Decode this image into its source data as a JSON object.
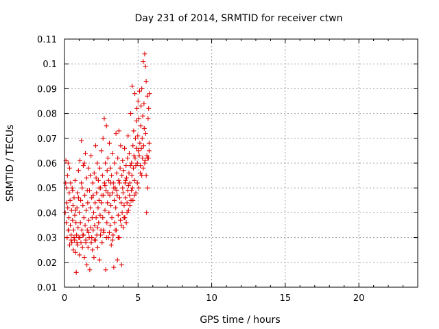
{
  "chart_data": {
    "type": "scatter",
    "title": "Day 231 of 2014, SRMTID for receiver ctwn",
    "xlabel": "GPS time / hours",
    "ylabel": "SRMTID / TECUs",
    "xlim": [
      0,
      24
    ],
    "ylim": [
      0.01,
      0.11
    ],
    "xticks": [
      0,
      5,
      10,
      15,
      20
    ],
    "yticks": [
      0.01,
      0.02,
      0.03,
      0.04,
      0.05,
      0.06,
      0.07,
      0.08,
      0.09,
      0.1,
      0.11
    ],
    "xtick_labels": [
      "0",
      "5",
      "10",
      "15",
      "20"
    ],
    "ytick_labels": [
      "0.01",
      "0.02",
      "0.03",
      "0.04",
      "0.05",
      "0.06",
      "0.07",
      "0.08",
      "0.09",
      "0.1",
      "0.11"
    ],
    "grid": true,
    "marker": "+",
    "color": "#e00000",
    "series": [
      {
        "name": "SRMTID",
        "points": [
          [
            0.05,
            0.04
          ],
          [
            0.08,
            0.052
          ],
          [
            0.1,
            0.061
          ],
          [
            0.12,
            0.036
          ],
          [
            0.15,
            0.044
          ],
          [
            0.18,
            0.03
          ],
          [
            0.2,
            0.055
          ],
          [
            0.22,
            0.042
          ],
          [
            0.25,
            0.06
          ],
          [
            0.28,
            0.033
          ],
          [
            0.3,
            0.038
          ],
          [
            0.32,
            0.048
          ],
          [
            0.35,
            0.027
          ],
          [
            0.38,
            0.045
          ],
          [
            0.4,
            0.035
          ],
          [
            0.42,
            0.052
          ],
          [
            0.45,
            0.031
          ],
          [
            0.48,
            0.041
          ],
          [
            0.5,
            0.028
          ],
          [
            0.52,
            0.05
          ],
          [
            0.55,
            0.037
          ],
          [
            0.58,
            0.043
          ],
          [
            0.6,
            0.025
          ],
          [
            0.62,
            0.033
          ],
          [
            0.65,
            0.046
          ],
          [
            0.68,
            0.029
          ],
          [
            0.7,
            0.039
          ],
          [
            0.72,
            0.053
          ],
          [
            0.75,
            0.024
          ],
          [
            0.78,
            0.036
          ],
          [
            0.8,
            0.016
          ],
          [
            0.82,
            0.031
          ],
          [
            0.85,
            0.042
          ],
          [
            0.88,
            0.027
          ],
          [
            0.9,
            0.048
          ],
          [
            0.92,
            0.034
          ],
          [
            0.95,
            0.057
          ],
          [
            0.98,
            0.03
          ],
          [
            1.0,
            0.04
          ],
          [
            1.02,
            0.023
          ],
          [
            1.05,
            0.061
          ],
          [
            1.08,
            0.036
          ],
          [
            1.1,
            0.045
          ],
          [
            1.12,
            0.028
          ],
          [
            1.15,
            0.069
          ],
          [
            1.18,
            0.033
          ],
          [
            1.2,
            0.05
          ],
          [
            1.22,
            0.026
          ],
          [
            1.25,
            0.043
          ],
          [
            1.28,
            0.059
          ],
          [
            1.3,
            0.031
          ],
          [
            1.32,
            0.038
          ],
          [
            1.35,
            0.022
          ],
          [
            1.38,
            0.047
          ],
          [
            1.4,
            0.035
          ],
          [
            1.42,
            0.064
          ],
          [
            1.45,
            0.029
          ],
          [
            1.48,
            0.041
          ],
          [
            1.5,
            0.054
          ],
          [
            1.52,
            0.019
          ],
          [
            1.55,
            0.033
          ],
          [
            1.58,
            0.044
          ],
          [
            1.6,
            0.026
          ],
          [
            1.62,
            0.058
          ],
          [
            1.65,
            0.037
          ],
          [
            1.68,
            0.03
          ],
          [
            1.7,
            0.049
          ],
          [
            1.72,
            0.017
          ],
          [
            1.75,
            0.042
          ],
          [
            1.78,
            0.034
          ],
          [
            1.8,
            0.063
          ],
          [
            1.82,
            0.028
          ],
          [
            1.85,
            0.046
          ],
          [
            1.88,
            0.038
          ],
          [
            1.9,
            0.025
          ],
          [
            1.92,
            0.052
          ],
          [
            1.95,
            0.033
          ],
          [
            1.98,
            0.04
          ],
          [
            2.0,
            0.022
          ],
          [
            2.02,
            0.056
          ],
          [
            2.05,
            0.035
          ],
          [
            2.08,
            0.044
          ],
          [
            2.1,
            0.029
          ],
          [
            2.12,
            0.067
          ],
          [
            2.15,
            0.038
          ],
          [
            2.18,
            0.048
          ],
          [
            2.2,
            0.031
          ],
          [
            2.22,
            0.06
          ],
          [
            2.25,
            0.026
          ],
          [
            2.28,
            0.042
          ],
          [
            2.3,
            0.053
          ],
          [
            2.32,
            0.036
          ],
          [
            2.35,
            0.045
          ],
          [
            2.38,
            0.021
          ],
          [
            2.4,
            0.058
          ],
          [
            2.42,
            0.039
          ],
          [
            2.45,
            0.05
          ],
          [
            2.48,
            0.033
          ],
          [
            2.5,
            0.065
          ],
          [
            2.52,
            0.044
          ],
          [
            2.55,
            0.028
          ],
          [
            2.58,
            0.055
          ],
          [
            2.6,
            0.038
          ],
          [
            2.62,
            0.07
          ],
          [
            2.65,
            0.047
          ],
          [
            2.68,
            0.032
          ],
          [
            2.7,
            0.078
          ],
          [
            2.72,
            0.052
          ],
          [
            2.75,
            0.041
          ],
          [
            2.78,
            0.06
          ],
          [
            2.8,
            0.017
          ],
          [
            2.82,
            0.049
          ],
          [
            2.85,
            0.075
          ],
          [
            2.88,
            0.036
          ],
          [
            2.9,
            0.057
          ],
          [
            2.92,
            0.044
          ],
          [
            2.95,
            0.062
          ],
          [
            2.98,
            0.03
          ],
          [
            3.0,
            0.053
          ],
          [
            3.02,
            0.04
          ],
          [
            3.05,
            0.068
          ],
          [
            3.08,
            0.047
          ],
          [
            3.1,
            0.035
          ],
          [
            3.12,
            0.058
          ],
          [
            3.15,
            0.043
          ],
          [
            3.18,
            0.027
          ],
          [
            3.2,
            0.055
          ],
          [
            3.22,
            0.038
          ],
          [
            3.25,
            0.064
          ],
          [
            3.28,
            0.048
          ],
          [
            3.3,
            0.031
          ],
          [
            3.32,
            0.052
          ],
          [
            3.35,
            0.018
          ],
          [
            3.38,
            0.045
          ],
          [
            3.4,
            0.06
          ],
          [
            3.42,
            0.036
          ],
          [
            3.45,
            0.05
          ],
          [
            3.48,
            0.042
          ],
          [
            3.5,
            0.072
          ],
          [
            3.52,
            0.033
          ],
          [
            3.55,
            0.056
          ],
          [
            3.58,
            0.047
          ],
          [
            3.6,
            0.021
          ],
          [
            3.62,
            0.062
          ],
          [
            3.65,
            0.039
          ],
          [
            3.68,
            0.053
          ],
          [
            3.7,
            0.073
          ],
          [
            3.72,
            0.03
          ],
          [
            3.75,
            0.046
          ],
          [
            3.78,
            0.058
          ],
          [
            3.8,
            0.037
          ],
          [
            3.82,
            0.067
          ],
          [
            3.85,
            0.044
          ],
          [
            3.88,
            0.019
          ],
          [
            3.9,
            0.055
          ],
          [
            3.92,
            0.04
          ],
          [
            3.95,
            0.061
          ],
          [
            3.98,
            0.048
          ],
          [
            4.0,
            0.034
          ],
          [
            4.02,
            0.057
          ],
          [
            4.05,
            0.043
          ],
          [
            4.08,
            0.066
          ],
          [
            4.1,
            0.038
          ],
          [
            4.12,
            0.052
          ],
          [
            4.15,
            0.046
          ],
          [
            4.18,
            0.059
          ],
          [
            4.2,
            0.036
          ],
          [
            4.22,
            0.054
          ],
          [
            4.25,
            0.044
          ],
          [
            4.28,
            0.062
          ],
          [
            4.3,
            0.049
          ],
          [
            4.32,
            0.071
          ],
          [
            4.35,
            0.041
          ],
          [
            4.38,
            0.056
          ],
          [
            4.4,
            0.064
          ],
          [
            4.42,
            0.047
          ],
          [
            4.45,
            0.052
          ],
          [
            4.48,
            0.059
          ],
          [
            4.5,
            0.08
          ],
          [
            4.52,
            0.045
          ],
          [
            4.55,
            0.06
          ],
          [
            4.58,
            0.055
          ],
          [
            4.6,
            0.091
          ],
          [
            4.62,
            0.05
          ],
          [
            4.65,
            0.067
          ],
          [
            4.68,
            0.058
          ],
          [
            4.7,
            0.073
          ],
          [
            4.72,
            0.063
          ],
          [
            4.75,
            0.053
          ],
          [
            4.78,
            0.088
          ],
          [
            4.8,
            0.062
          ],
          [
            4.82,
            0.07
          ],
          [
            4.85,
            0.059
          ],
          [
            4.88,
            0.077
          ],
          [
            4.9,
            0.066
          ],
          [
            4.92,
            0.082
          ],
          [
            4.95,
            0.06
          ],
          [
            4.98,
            0.071
          ],
          [
            5.0,
            0.085
          ],
          [
            5.02,
            0.065
          ],
          [
            5.05,
            0.078
          ],
          [
            5.08,
            0.063
          ],
          [
            5.1,
            0.089
          ],
          [
            5.12,
            0.068
          ],
          [
            5.15,
            0.059
          ],
          [
            5.18,
            0.075
          ],
          [
            5.2,
            0.083
          ],
          [
            5.22,
            0.066
          ],
          [
            5.25,
            0.09
          ],
          [
            5.28,
            0.07
          ],
          [
            5.3,
            0.062
          ],
          [
            5.32,
            0.079
          ],
          [
            5.35,
            0.101
          ],
          [
            5.38,
            0.067
          ],
          [
            5.4,
            0.084
          ],
          [
            5.42,
            0.074
          ],
          [
            5.45,
            0.104
          ],
          [
            5.48,
            0.061
          ],
          [
            5.5,
            0.099
          ],
          [
            5.52,
            0.072
          ],
          [
            5.55,
            0.093
          ],
          [
            5.58,
            0.04
          ],
          [
            5.6,
            0.063
          ],
          [
            5.62,
            0.087
          ],
          [
            5.65,
            0.05
          ],
          [
            5.68,
            0.078
          ],
          [
            5.7,
            0.062
          ],
          [
            5.72,
            0.082
          ],
          [
            5.75,
            0.068
          ],
          [
            5.78,
            0.088
          ],
          [
            0.15,
            0.05
          ],
          [
            0.35,
            0.058
          ],
          [
            0.55,
            0.049
          ],
          [
            0.75,
            0.041
          ],
          [
            0.95,
            0.046
          ],
          [
            1.15,
            0.052
          ],
          [
            1.35,
            0.06
          ],
          [
            1.55,
            0.049
          ],
          [
            1.75,
            0.055
          ],
          [
            1.95,
            0.047
          ],
          [
            2.15,
            0.054
          ],
          [
            2.35,
            0.05
          ],
          [
            2.55,
            0.047
          ],
          [
            2.75,
            0.051
          ],
          [
            2.95,
            0.048
          ],
          [
            3.15,
            0.052
          ],
          [
            3.35,
            0.05
          ],
          [
            3.55,
            0.049
          ],
          [
            3.75,
            0.052
          ],
          [
            3.95,
            0.05
          ],
          [
            4.15,
            0.053
          ],
          [
            4.35,
            0.051
          ],
          [
            4.55,
            0.049
          ],
          [
            4.75,
            0.047
          ],
          [
            4.95,
            0.052
          ],
          [
            5.15,
            0.056
          ],
          [
            5.35,
            0.058
          ],
          [
            5.55,
            0.055
          ],
          [
            5.75,
            0.065
          ],
          [
            0.25,
            0.033
          ],
          [
            0.45,
            0.029
          ],
          [
            0.65,
            0.03
          ],
          [
            0.85,
            0.028
          ],
          [
            1.05,
            0.03
          ],
          [
            1.25,
            0.031
          ],
          [
            1.45,
            0.028
          ],
          [
            1.65,
            0.032
          ],
          [
            1.85,
            0.03
          ],
          [
            2.05,
            0.029
          ],
          [
            2.25,
            0.034
          ],
          [
            2.45,
            0.031
          ],
          [
            2.65,
            0.033
          ],
          [
            2.85,
            0.03
          ],
          [
            3.05,
            0.032
          ],
          [
            3.25,
            0.029
          ],
          [
            3.45,
            0.033
          ],
          [
            3.65,
            0.03
          ],
          [
            3.85,
            0.035
          ],
          [
            4.05,
            0.038
          ],
          [
            4.25,
            0.04
          ],
          [
            4.45,
            0.043
          ],
          [
            4.65,
            0.045
          ],
          [
            4.85,
            0.048
          ],
          [
            5.05,
            0.05
          ],
          [
            5.25,
            0.055
          ],
          [
            5.45,
            0.06
          ],
          [
            5.65,
            0.062
          ]
        ]
      }
    ]
  }
}
